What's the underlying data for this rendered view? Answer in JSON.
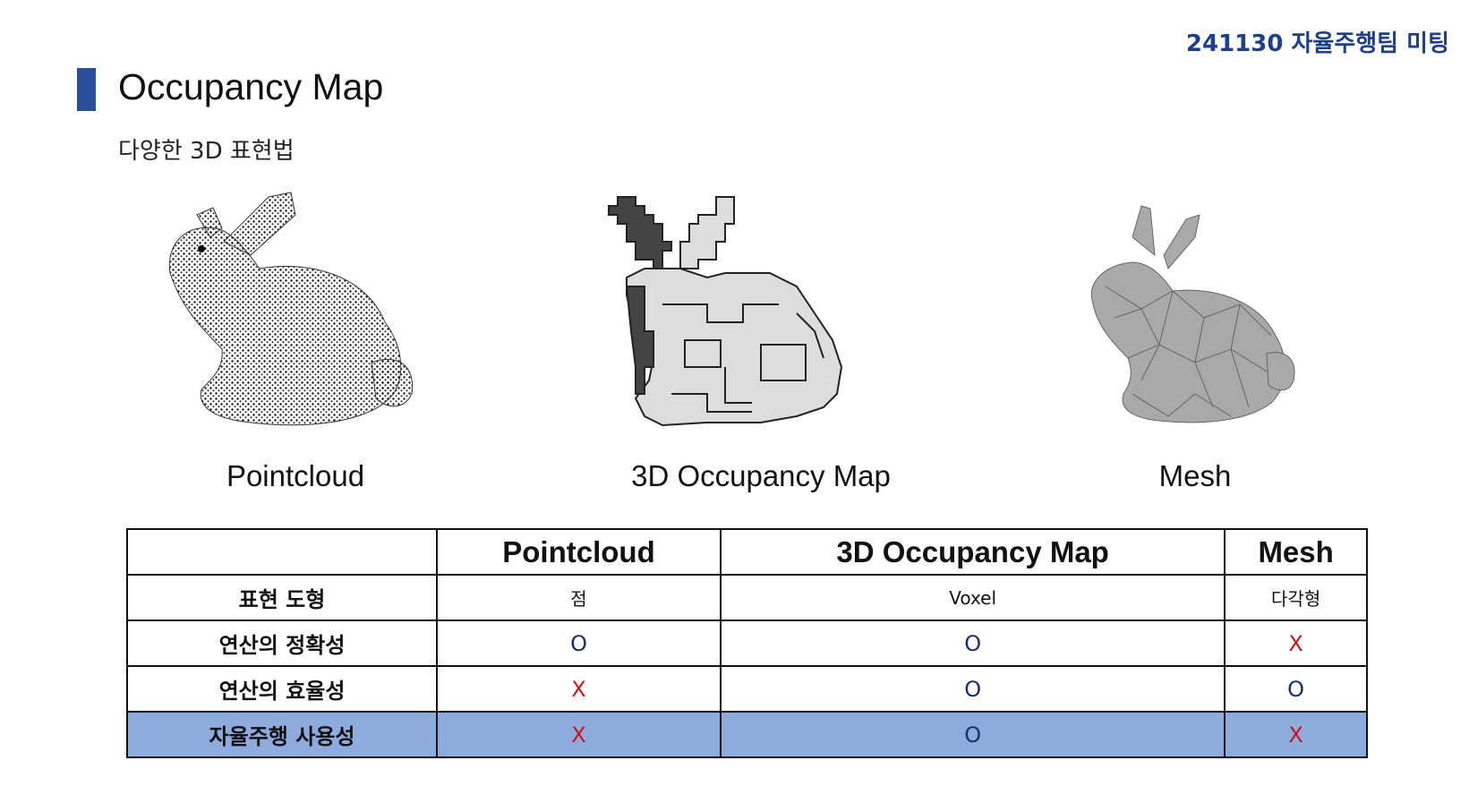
{
  "header": {
    "meeting_tag": "241130 자율주행팀 미팅",
    "title": "Occupancy Map",
    "subtitle": "다양한 3D 표현법"
  },
  "figures": [
    {
      "caption": "Pointcloud",
      "icon": "point-cloud-bunny"
    },
    {
      "caption": "3D Occupancy Map",
      "icon": "voxel-bunny"
    },
    {
      "caption": "Mesh",
      "icon": "mesh-bunny"
    }
  ],
  "table": {
    "columns": [
      "",
      "Pointcloud",
      "3D Occupancy Map",
      "Mesh"
    ],
    "rows": [
      {
        "label": "표현 도형",
        "values": [
          "점",
          "Voxel",
          "다각형"
        ]
      },
      {
        "label": "연산의 정확성",
        "values": [
          "O",
          "O",
          "X"
        ]
      },
      {
        "label": "연산의 효율성",
        "values": [
          "X",
          "O",
          "O"
        ]
      },
      {
        "label": "자율주행 사용성",
        "values": [
          "X",
          "O",
          "X"
        ]
      }
    ],
    "colors": {
      "o": "#1a2f6b",
      "x": "#c8141c",
      "highlight_row": "#8eabde"
    }
  }
}
